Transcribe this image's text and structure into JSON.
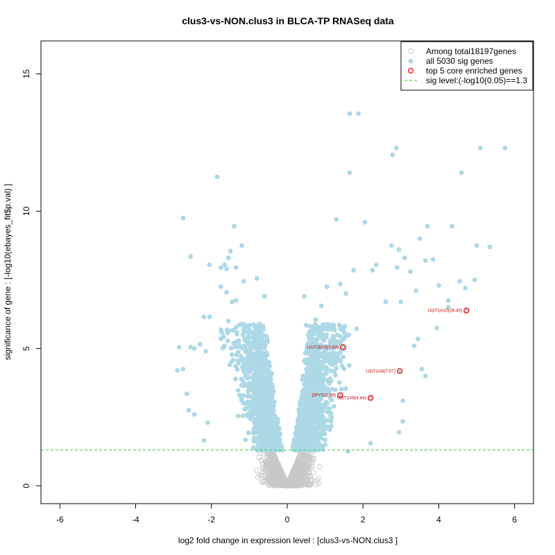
{
  "chart_data": {
    "type": "scatter",
    "title": "clus3-vs-NON.clus3 in BLCA-TP RNASeq data",
    "xlabel": "log2 fold change in expression level : [clus3-vs-NON.clus3 ]",
    "ylabel": "significance of gene : [-log10(ebayes_fit$p.val) ]",
    "xlim": [
      -6.5,
      6.5
    ],
    "ylim": [
      -0.65,
      16.2
    ],
    "xticks": [
      -6,
      -4,
      -2,
      0,
      2,
      4,
      6
    ],
    "yticks": [
      0,
      5,
      10,
      15
    ],
    "colors": {
      "nonsig": "#c8c8c8",
      "sig": "#add8e6",
      "core": "#ff0000",
      "threshold": "#33cc33",
      "label": "#cc0000"
    },
    "threshold": {
      "value": 1.3,
      "label": "sig level:(-log10(0.05)==1.3"
    },
    "legend": {
      "position": "top-right",
      "entries": [
        {
          "label": "Among total18197genes",
          "kind": "nonsig"
        },
        {
          "label": "all 5030 sig genes",
          "kind": "sig"
        },
        {
          "label": "top 5 core enriched genes",
          "kind": "core"
        },
        {
          "label": "sig level:(-log10(0.05)==1.3",
          "kind": "threshold"
        }
      ]
    },
    "core_genes": [
      {
        "label": "UGT1A10(26.40)",
        "x": 4.73,
        "y": 6.38
      },
      {
        "label": "UGT2B28(0.80)",
        "x": 1.47,
        "y": 5.05
      },
      {
        "label": "UGT1A8(7.07)",
        "x": 2.97,
        "y": 4.18
      },
      {
        "label": "DPYD(2.89)",
        "x": 1.4,
        "y": 3.3
      },
      {
        "label": "UGT1A9(4.84)",
        "x": 2.2,
        "y": 3.2
      }
    ],
    "notable_sig_points": [
      [
        1.65,
        13.55
      ],
      [
        1.88,
        13.55
      ],
      [
        2.88,
        12.3
      ],
      [
        2.78,
        12.05
      ],
      [
        5.1,
        12.3
      ],
      [
        5.75,
        12.3
      ],
      [
        1.65,
        11.4
      ],
      [
        4.6,
        11.4
      ],
      [
        -1.85,
        11.25
      ],
      [
        1.3,
        9.7
      ],
      [
        2.05,
        9.6
      ],
      [
        3.7,
        9.45
      ],
      [
        4.35,
        9.45
      ],
      [
        -2.75,
        9.75
      ],
      [
        -1.4,
        9.45
      ],
      [
        5.0,
        8.75
      ],
      [
        5.35,
        8.7
      ],
      [
        3.5,
        9.0
      ],
      [
        2.75,
        8.75
      ],
      [
        2.95,
        8.6
      ],
      [
        3.1,
        8.3
      ],
      [
        3.65,
        8.2
      ],
      [
        3.85,
        8.25
      ],
      [
        2.9,
        7.95
      ],
      [
        3.25,
        7.8
      ],
      [
        -1.2,
        8.75
      ],
      [
        -1.5,
        8.55
      ],
      [
        -2.55,
        8.35
      ],
      [
        -1.55,
        8.3
      ],
      [
        -2.05,
        8.05
      ],
      [
        -1.35,
        7.95
      ],
      [
        -1.65,
        8.05
      ],
      [
        -1.75,
        7.95
      ],
      [
        -1.6,
        7.9
      ],
      [
        4.55,
        7.45
      ],
      [
        4.0,
        7.3
      ],
      [
        4.95,
        7.5
      ],
      [
        4.7,
        7.2
      ],
      [
        3.4,
        7.1
      ],
      [
        3.0,
        6.7
      ],
      [
        4.25,
        6.75
      ],
      [
        4.25,
        6.5
      ],
      [
        3.95,
        5.75
      ],
      [
        -0.8,
        7.55
      ],
      [
        -1.15,
        7.45
      ],
      [
        -1.75,
        7.25
      ],
      [
        -1.6,
        7.05
      ],
      [
        -1.35,
        6.75
      ],
      [
        -1.45,
        6.7
      ],
      [
        -0.6,
        6.9
      ],
      [
        -2.2,
        6.15
      ],
      [
        -2.05,
        6.15
      ],
      [
        -1.55,
        6.0
      ],
      [
        -2.85,
        5.05
      ],
      [
        -2.55,
        5.05
      ],
      [
        -2.3,
        5.15
      ],
      [
        -2.45,
        5.0
      ],
      [
        -2.15,
        4.9
      ],
      [
        -2.75,
        4.25
      ],
      [
        -2.9,
        4.2
      ],
      [
        -2.65,
        3.35
      ],
      [
        -2.6,
        2.75
      ],
      [
        -2.45,
        2.6
      ],
      [
        -2.1,
        2.3
      ],
      [
        -2.2,
        1.65
      ],
      [
        3.65,
        4.0
      ],
      [
        3.05,
        2.35
      ],
      [
        2.95,
        1.95
      ],
      [
        2.2,
        1.55
      ],
      [
        1.6,
        1.25
      ],
      [
        3.05,
        3.1
      ],
      [
        3.35,
        5.1
      ],
      [
        3.45,
        5.35
      ],
      [
        3.55,
        4.25
      ],
      [
        0.75,
        6.05
      ],
      [
        0.9,
        6.55
      ],
      [
        0.5,
        5.85
      ],
      [
        1.05,
        7.25
      ],
      [
        0.45,
        6.9
      ],
      [
        1.55,
        7.0
      ],
      [
        1.75,
        7.85
      ],
      [
        2.25,
        7.85
      ],
      [
        2.35,
        8.05
      ],
      [
        1.4,
        7.35
      ],
      [
        2.6,
        6.7
      ]
    ]
  }
}
